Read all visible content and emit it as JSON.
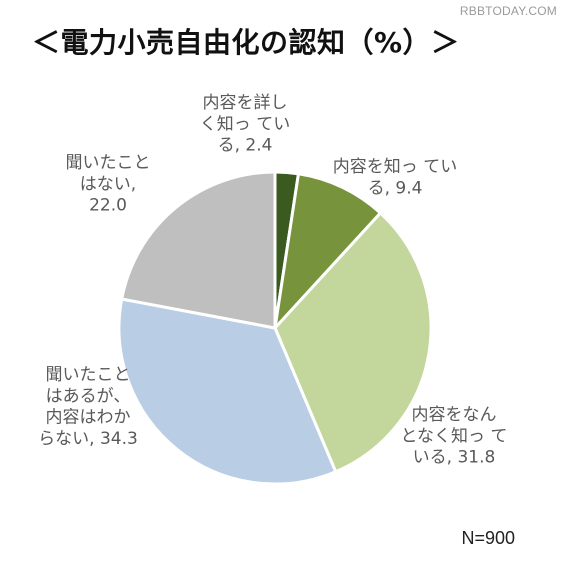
{
  "watermark": "RBBTODAY.COM",
  "title": "＜電力小売自由化の認知（%）＞",
  "note": "N=900",
  "chart_data": {
    "type": "pie",
    "title": "＜電力小売自由化の認知（%）＞",
    "start_angle_deg": 0,
    "direction": "clockwise",
    "slices": [
      {
        "label_lines": [
          "内容を詳し",
          "く知っ てい",
          "る, 2.4"
        ],
        "category": "内容を詳しく知っている",
        "value": 2.4,
        "color": "#3a5a1f"
      },
      {
        "label_lines": [
          "内容を知っ てい",
          "る, 9.4"
        ],
        "category": "内容を知っている",
        "value": 9.4,
        "color": "#77933c"
      },
      {
        "label_lines": [
          "内容をなん",
          "となく知っ て",
          "いる, 31.8"
        ],
        "category": "内容をなんとなく知っている",
        "value": 31.8,
        "color": "#c3d69b"
      },
      {
        "label_lines": [
          "聞いたこと",
          "はあるが、",
          "内容はわか",
          "らない, 34.3"
        ],
        "category": "聞いたことはあるが、内容はわからない",
        "value": 34.3,
        "color": "#b9cde5"
      },
      {
        "label_lines": [
          "聞いたこと",
          "はない,",
          "22.0"
        ],
        "category": "聞いたことはない",
        "value": 22.0,
        "color": "#bfbfbf"
      }
    ]
  }
}
